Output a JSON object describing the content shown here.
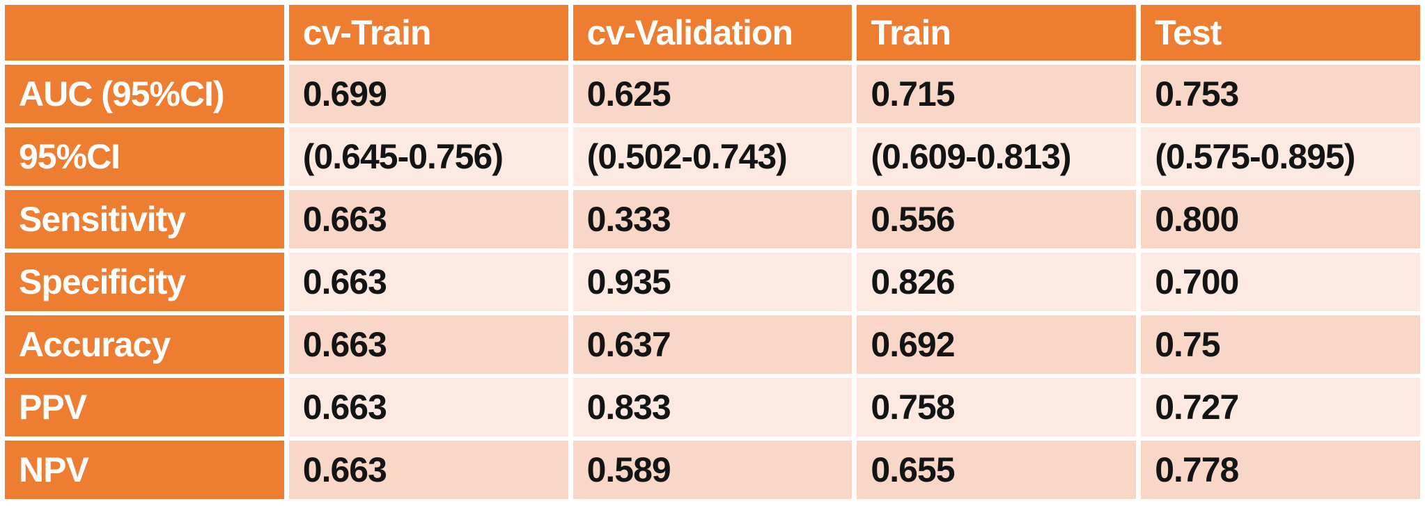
{
  "colors": {
    "header_bg": "#ED7D31",
    "band_dark": "#F8D7C9",
    "band_light": "#FCEAE2",
    "header_text": "#FFFFFF",
    "value_text": "#141414",
    "page_bg": "#FFFFFF"
  },
  "table": {
    "columns": [
      "",
      "cv-Train",
      "cv-Validation",
      "Train",
      "Test"
    ],
    "rows": [
      {
        "label": "AUC (95%CI)",
        "values": [
          "0.699",
          "0.625",
          "0.715",
          "0.753"
        ]
      },
      {
        "label": "95%CI",
        "values": [
          "(0.645-0.756)",
          "(0.502-0.743)",
          "(0.609-0.813)",
          "(0.575-0.895)"
        ]
      },
      {
        "label": "Sensitivity",
        "values": [
          "0.663",
          "0.333",
          "0.556",
          "0.800"
        ]
      },
      {
        "label": "Specificity",
        "values": [
          "0.663",
          "0.935",
          "0.826",
          "0.700"
        ]
      },
      {
        "label": "Accuracy",
        "values": [
          "0.663",
          "0.637",
          "0.692",
          "0.75"
        ]
      },
      {
        "label": "PPV",
        "values": [
          "0.663",
          "0.833",
          "0.758",
          "0.727"
        ]
      },
      {
        "label": "NPV",
        "values": [
          "0.663",
          "0.589",
          "0.655",
          "0.778"
        ]
      }
    ]
  },
  "chart_data": {
    "type": "table",
    "title": "",
    "columns": [
      "",
      "cv-Train",
      "cv-Validation",
      "Train",
      "Test"
    ],
    "rows": [
      [
        "AUC (95%CI)",
        "0.699",
        "0.625",
        "0.715",
        "0.753"
      ],
      [
        "95%CI",
        "(0.645-0.756)",
        "(0.502-0.743)",
        "(0.609-0.813)",
        "(0.575-0.895)"
      ],
      [
        "Sensitivity",
        "0.663",
        "0.333",
        "0.556",
        "0.800"
      ],
      [
        "Specificity",
        "0.663",
        "0.935",
        "0.826",
        "0.700"
      ],
      [
        "Accuracy",
        "0.663",
        "0.637",
        "0.692",
        "0.75"
      ],
      [
        "PPV",
        "0.663",
        "0.833",
        "0.758",
        "0.727"
      ],
      [
        "NPV",
        "0.663",
        "0.589",
        "0.655",
        "0.778"
      ]
    ]
  }
}
